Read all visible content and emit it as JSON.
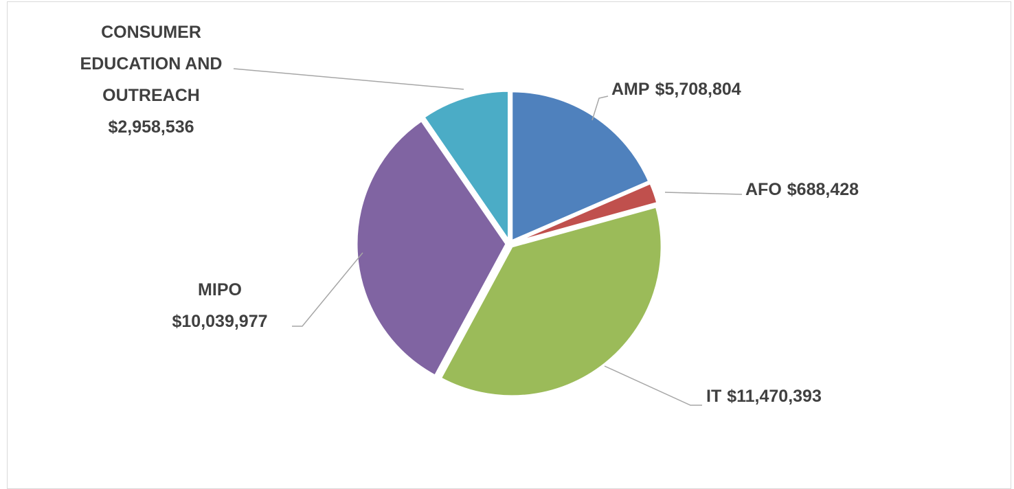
{
  "chart_data": {
    "type": "pie",
    "categories": [
      "AMP",
      "AFO",
      "IT",
      "MIPO",
      "CONSUMER EDUCATION AND OUTREACH"
    ],
    "values": [
      5708804,
      688428,
      11470393,
      10039977,
      2958536
    ],
    "value_labels": [
      "$5,708,804",
      "$688,428",
      "$11,470,393",
      "$10,039,977",
      "$2,958,536"
    ],
    "colors": [
      "#4f81bd",
      "#c0504d",
      "#9bbb59",
      "#8064a2",
      "#4bacc6"
    ]
  }
}
